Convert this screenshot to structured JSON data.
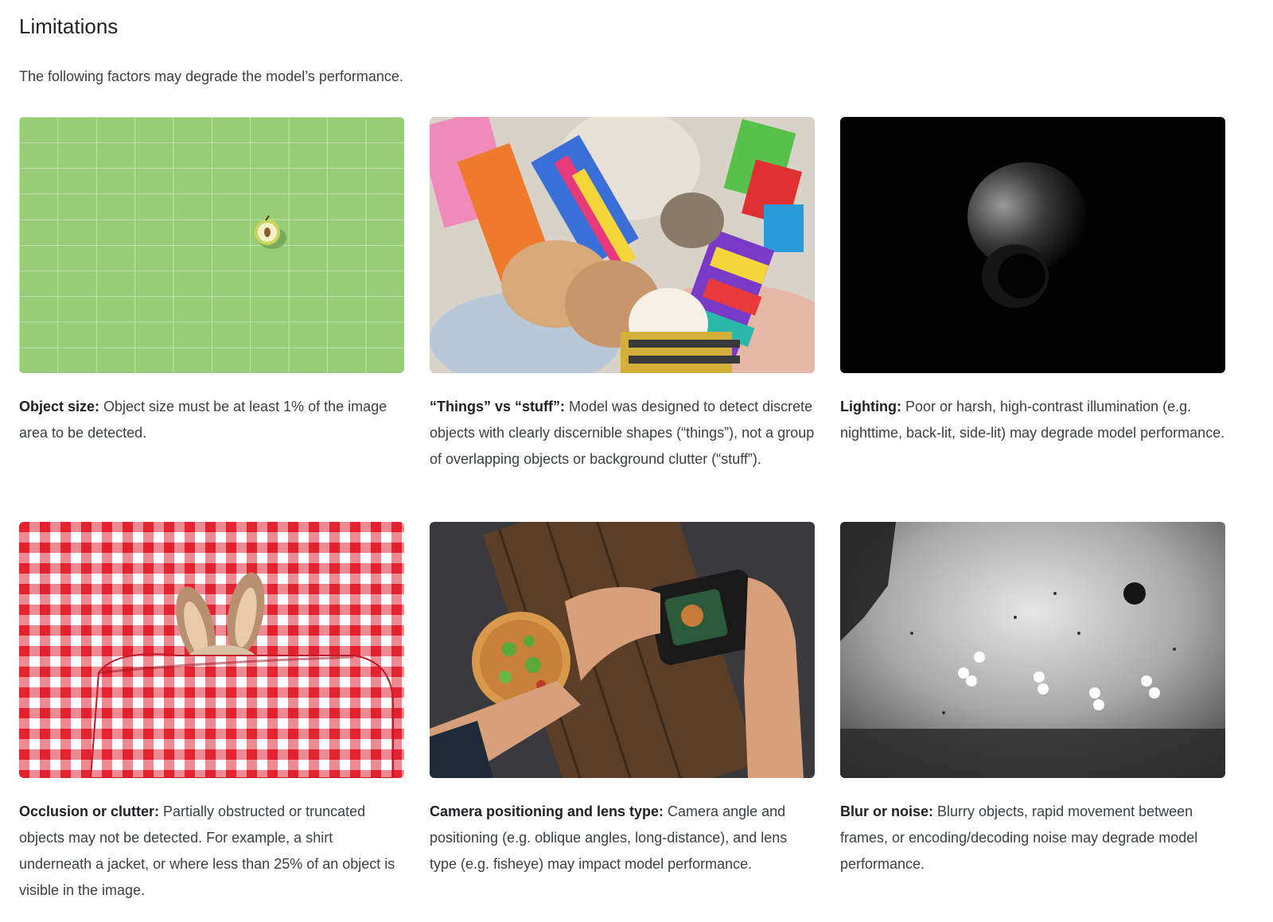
{
  "section": {
    "title": "Limitations",
    "intro": "The following factors may degrade the model’s performance."
  },
  "cards": [
    {
      "label": "Object size:",
      "text": " Object size must be at least 1% of the image area to be detected.",
      "image": "apple-on-green-grid"
    },
    {
      "label": "“Things” vs “stuff”:",
      "text": " Model was designed to detect discrete objects with clearly discernible shapes (“things”), not a group of overlapping objects or background clutter (“stuff”).",
      "image": "pile-of-mittens"
    },
    {
      "label": "Lighting:",
      "text": " Poor or harsh, high-contrast illumination (e.g. nighttime, back-lit, side-lit) may degrade model performance.",
      "image": "dark-vase"
    },
    {
      "label": "Occlusion or clutter:",
      "text": " Partially obstructed or truncated objects may not be detected. For example, a shirt underneath a jacket, or where less than 25% of an object is visible in the image.",
      "image": "bunny-under-gingham"
    },
    {
      "label": "Camera positioning and lens type:",
      "text": " Camera angle and positioning (e.g. oblique angles, long-distance), and lens type (e.g. fisheye) may impact model performance.",
      "image": "camera-photographing-pizza"
    },
    {
      "label": "Blur or noise:",
      "text": " Blurry objects, rapid movement between frames, or encoding/decoding noise may degrade model performance.",
      "image": "noisy-stadium"
    }
  ],
  "colors": {
    "grid_green": "#97cd76",
    "gingham_red": "#e8303f",
    "text": "#3c4043",
    "heading": "#202124"
  }
}
